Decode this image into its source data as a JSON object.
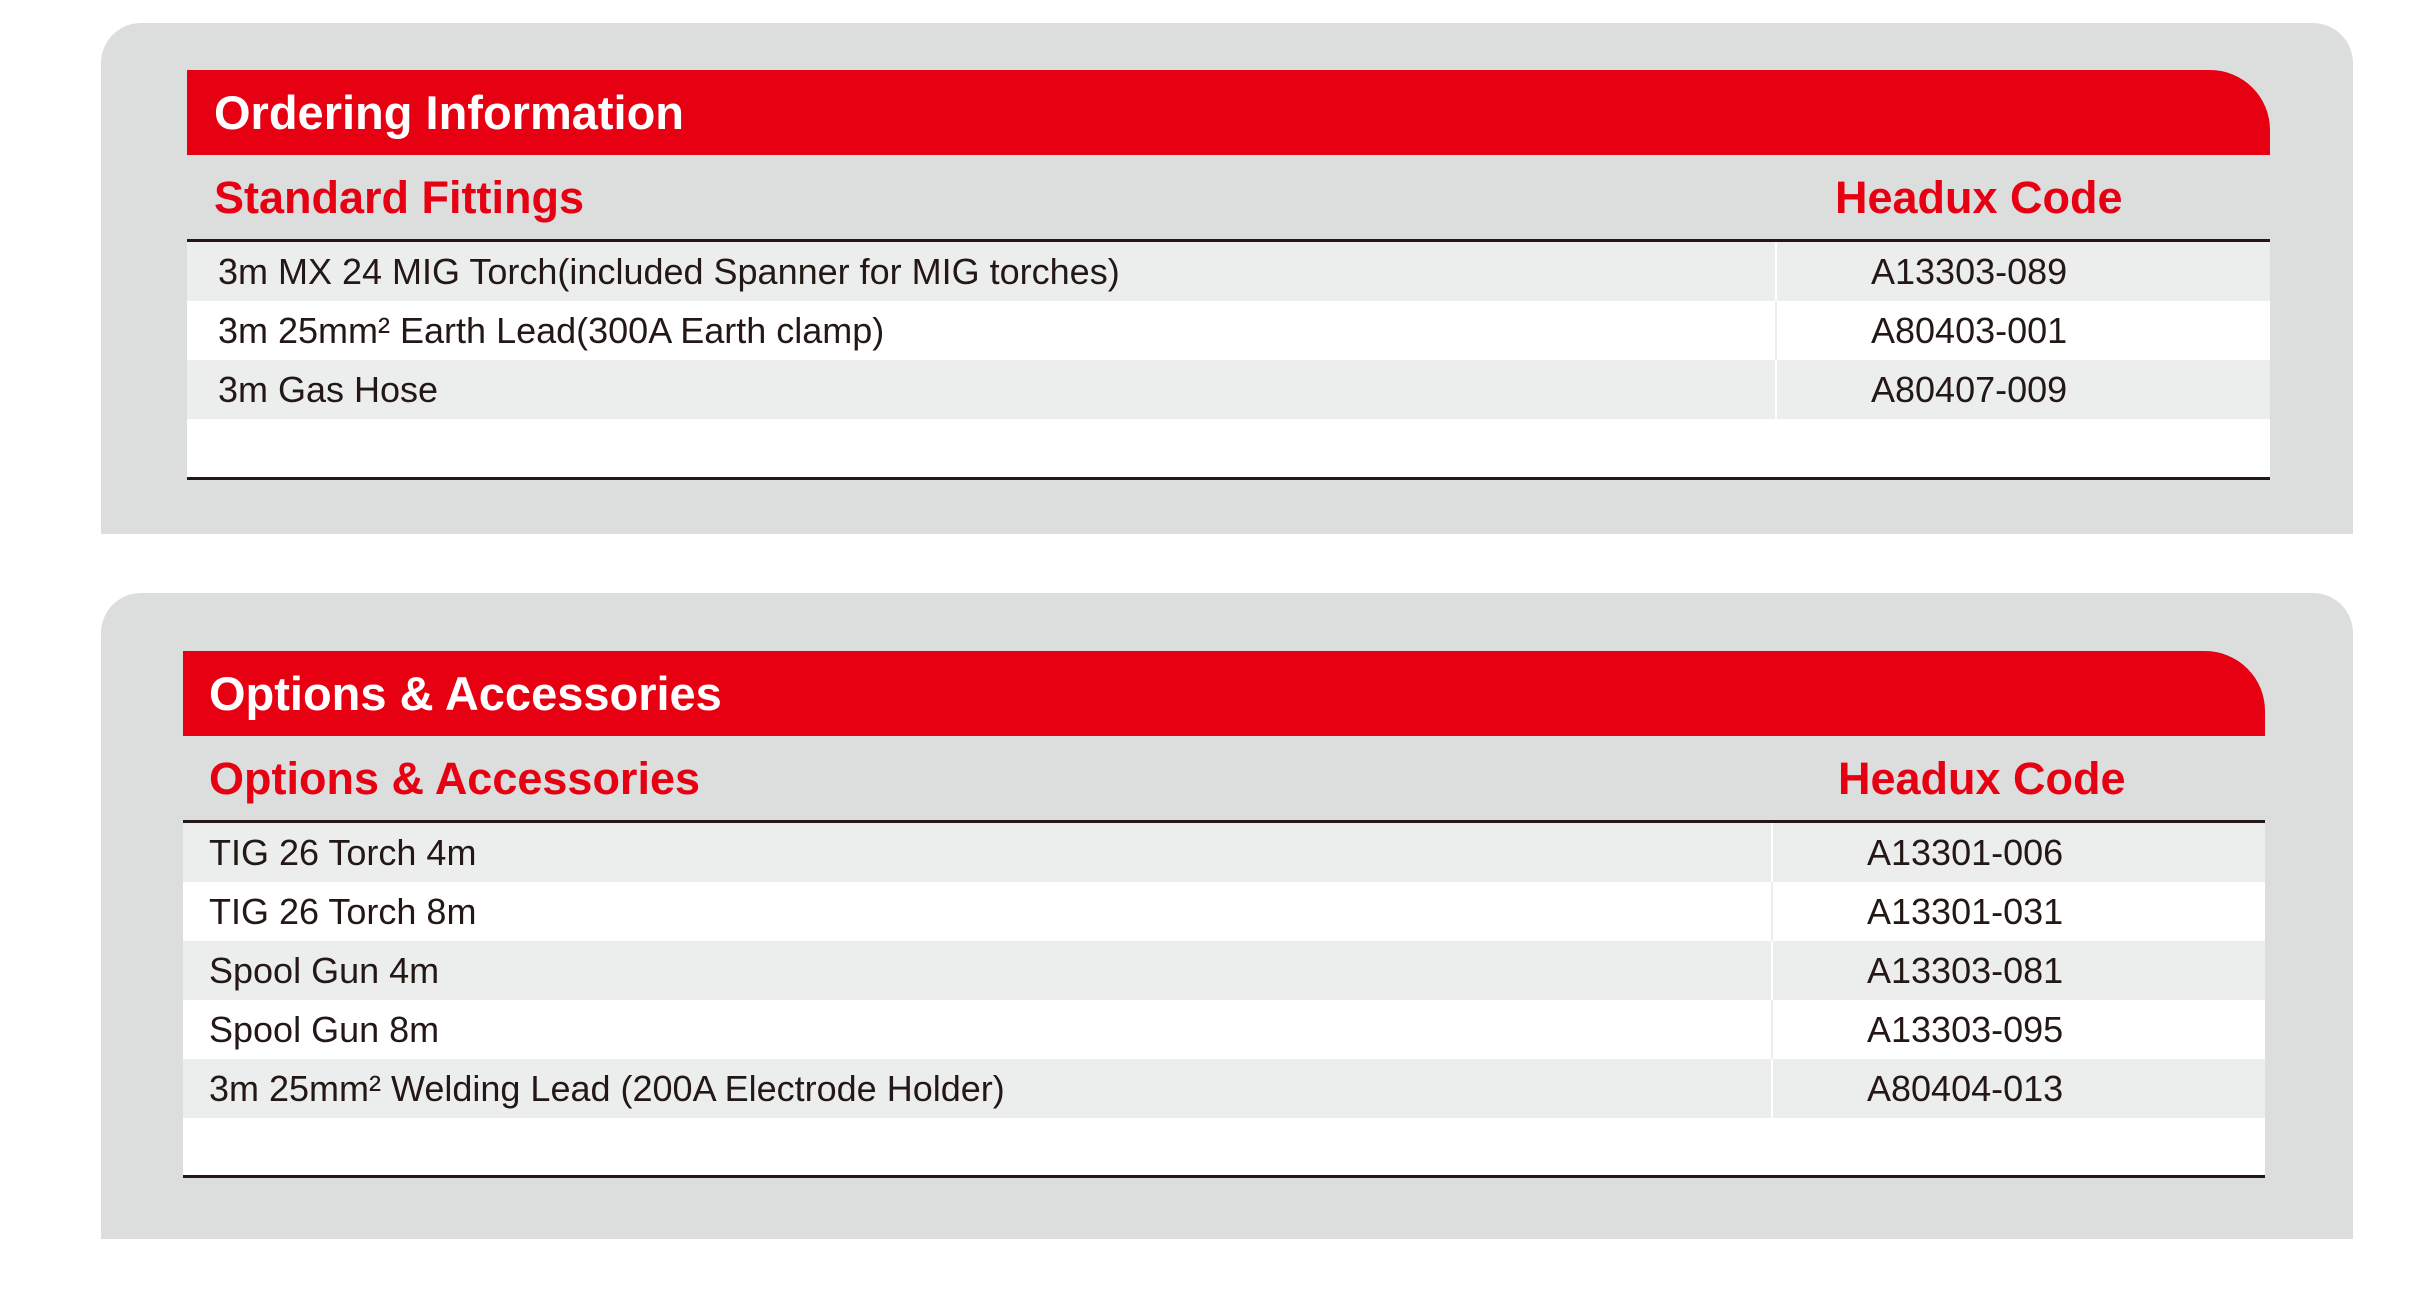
{
  "colors": {
    "accent": "#e60012",
    "panel": "#dcdddd",
    "row_alt": "#eceeed"
  },
  "ordering": {
    "title": "Ordering Information",
    "col_item": "Standard Fittings",
    "col_code": "Headux Code",
    "rows": [
      {
        "item": "3m MX 24 MIG Torch(included Spanner for MIG torches)",
        "code": "A13303-089"
      },
      {
        "item": "3m 25mm² Earth Lead(300A Earth clamp)",
        "code": "A80403-001"
      },
      {
        "item": "3m Gas Hose",
        "code": "A80407-009"
      }
    ]
  },
  "options": {
    "title": "Options & Accessories",
    "col_item": "Options & Accessories",
    "col_code": "Headux Code",
    "rows": [
      {
        "item": "TIG 26 Torch 4m",
        "code": "A13301-006"
      },
      {
        "item": "TIG 26 Torch 8m",
        "code": "A13301-031"
      },
      {
        "item": "Spool Gun 4m",
        "code": "A13303-081"
      },
      {
        "item": "Spool Gun 8m",
        "code": "A13303-095"
      },
      {
        "item": "3m 25mm² Welding Lead (200A Electrode Holder)",
        "code": "A80404-013"
      }
    ]
  }
}
